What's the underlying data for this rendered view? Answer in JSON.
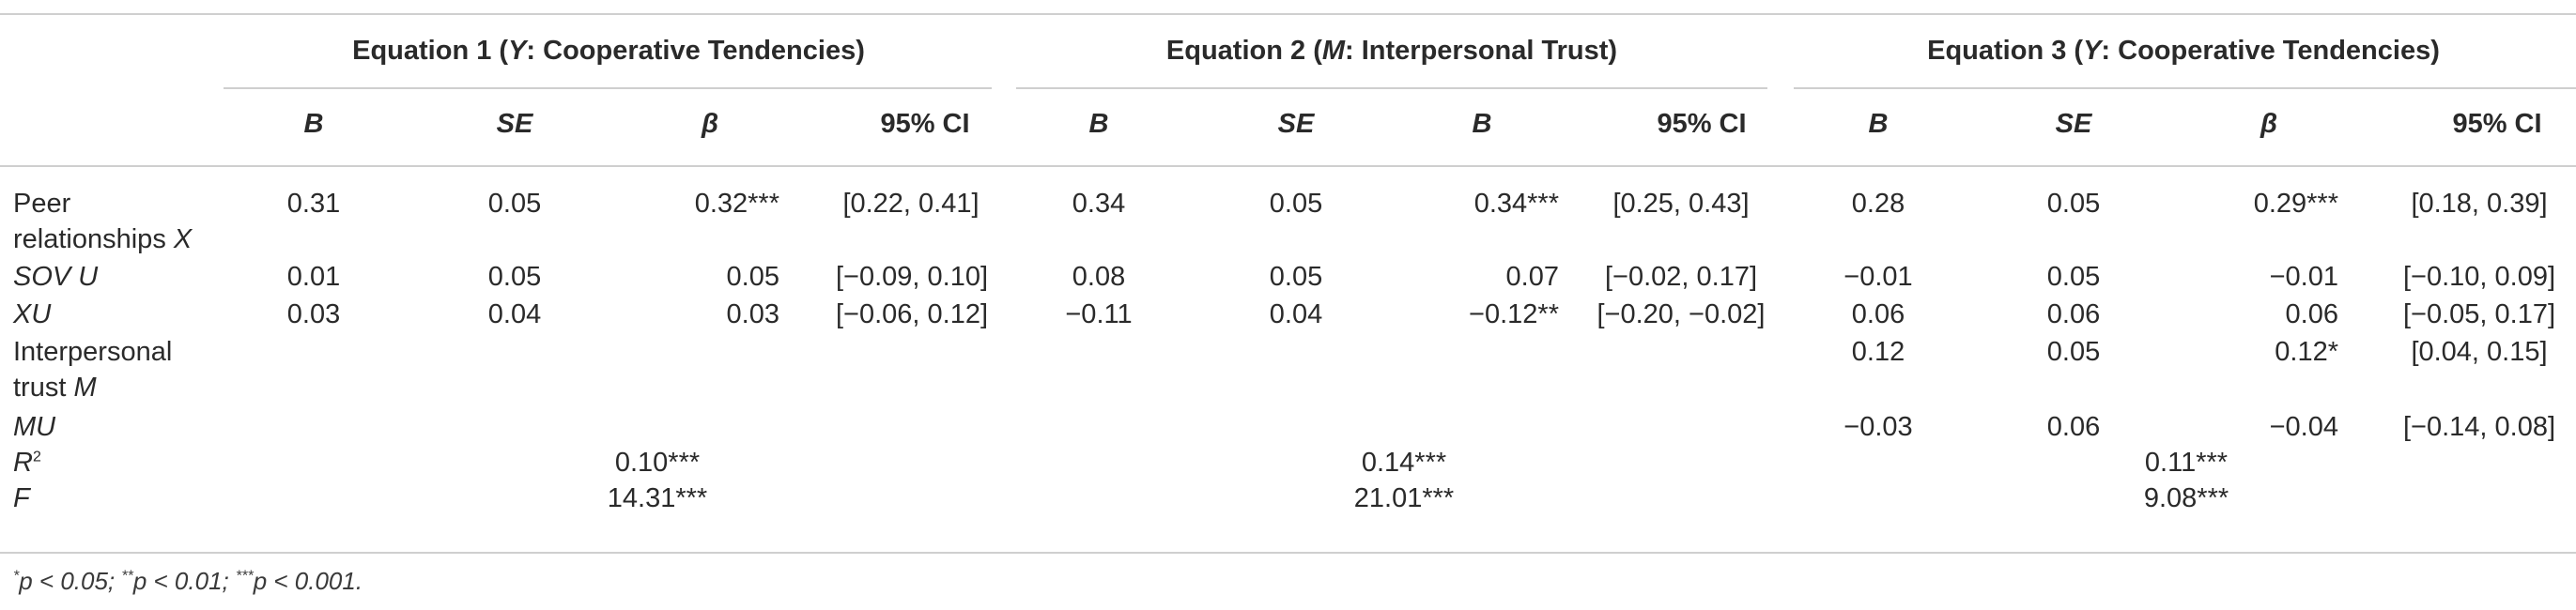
{
  "equations": [
    {
      "title_pre": "Equation 1 (",
      "title_var": "Y",
      "title_post": ": Cooperative Tendencies)"
    },
    {
      "title_pre": "Equation 2 (",
      "title_var": "M",
      "title_post": ": Interpersonal Trust)"
    },
    {
      "title_pre": "Equation 3 (",
      "title_var": "Y",
      "title_post": ": Cooperative Tendencies)"
    }
  ],
  "column_headers": [
    "B",
    "SE",
    "β",
    "95% CI",
    "B",
    "SE",
    "B",
    "95% CI",
    "B",
    "SE",
    "β",
    "95% CI"
  ],
  "rows": [
    {
      "label_a": "Peer",
      "label_b": "relationships ",
      "label_var": "X",
      "cells": [
        "0.31",
        "0.05",
        "0.32***",
        "[0.22, 0.41]",
        "0.34",
        "0.05",
        "0.34***",
        "[0.25, 0.43]",
        "0.28",
        "0.05",
        "0.29***",
        "[0.18, 0.39]"
      ]
    },
    {
      "label_var_only": "SOV U",
      "cells": [
        "0.01",
        "0.05",
        "0.05",
        "[−0.09, 0.10]",
        "0.08",
        "0.05",
        "0.07",
        "[−0.02, 0.17]",
        "−0.01",
        "0.05",
        "−0.01",
        "[−0.10, 0.09]"
      ]
    },
    {
      "label_var_only": "XU",
      "cells": [
        "0.03",
        "0.04",
        "0.03",
        "[−0.06, 0.12]",
        "−0.11",
        "0.04",
        "−0.12**",
        "[−0.20, −0.02]",
        "0.06",
        "0.06",
        "0.06",
        "[−0.05, 0.17]"
      ]
    },
    {
      "label_a": "Interpersonal",
      "label_b": "trust ",
      "label_var": "M",
      "cells": [
        "",
        "",
        "",
        "",
        "",
        "",
        "",
        "",
        "0.12",
        "0.05",
        "0.12*",
        "[0.04, 0.15]"
      ]
    },
    {
      "label_var_only": "MU",
      "cells": [
        "",
        "",
        "",
        "",
        "",
        "",
        "",
        "",
        "−0.03",
        "0.06",
        "−0.04",
        "[−0.14, 0.08]"
      ]
    }
  ],
  "summary": {
    "r2_label": "R",
    "r2_sup": "2",
    "r2_values": [
      "0.10***",
      "0.14***",
      "0.11***"
    ],
    "f_label": "F",
    "f_values": [
      "14.31***",
      "21.01***",
      "9.08***"
    ]
  },
  "footnote": {
    "s1": "*",
    "t1": "p < 0.05; ",
    "s2": "**",
    "t2": "p < 0.01; ",
    "s3": "***",
    "t3": "p < 0.001."
  }
}
